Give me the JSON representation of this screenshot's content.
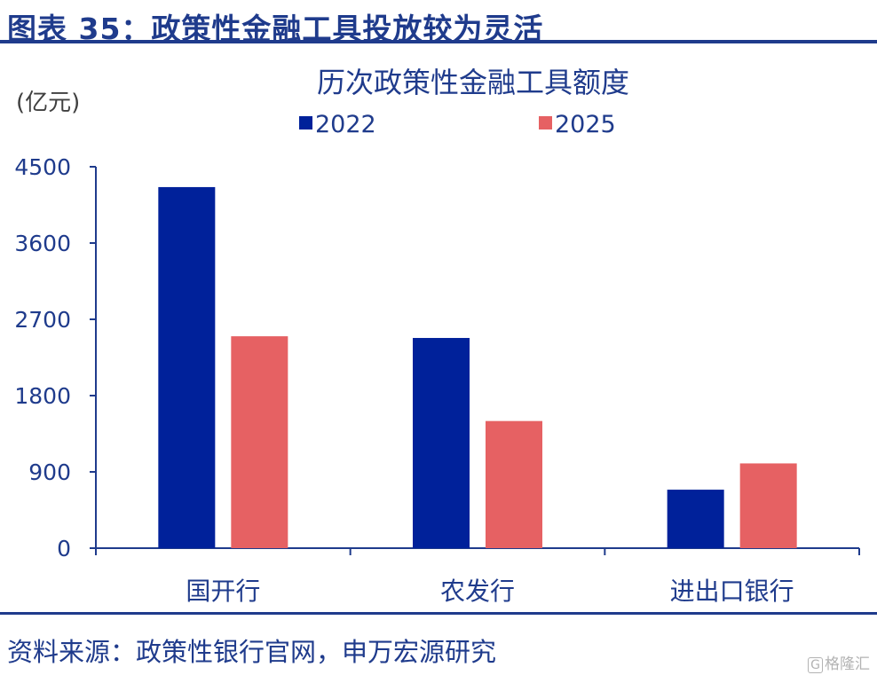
{
  "figure": {
    "title": "图表 35：政策性金融工具投放较为灵活",
    "source": "资料来源：政策性银行官网，申万宏源研究",
    "watermark_mark": "G",
    "watermark_text": "格隆汇"
  },
  "chart_data": {
    "type": "bar",
    "title": "历次政策性金融工具额度",
    "ylabel": "(亿元)",
    "xlabel": "",
    "categories": [
      "国开行",
      "农发行",
      "进出口银行"
    ],
    "series": [
      {
        "name": "2022",
        "color": "#00219a",
        "values": [
          4260,
          2480,
          690
        ]
      },
      {
        "name": "2025",
        "color": "#e66163",
        "values": [
          2500,
          1500,
          1000
        ]
      }
    ],
    "ylim": [
      0,
      4500
    ],
    "yticks": [
      0,
      900,
      1800,
      2700,
      3600,
      4500
    ],
    "grid": false,
    "legend_position": "top"
  }
}
